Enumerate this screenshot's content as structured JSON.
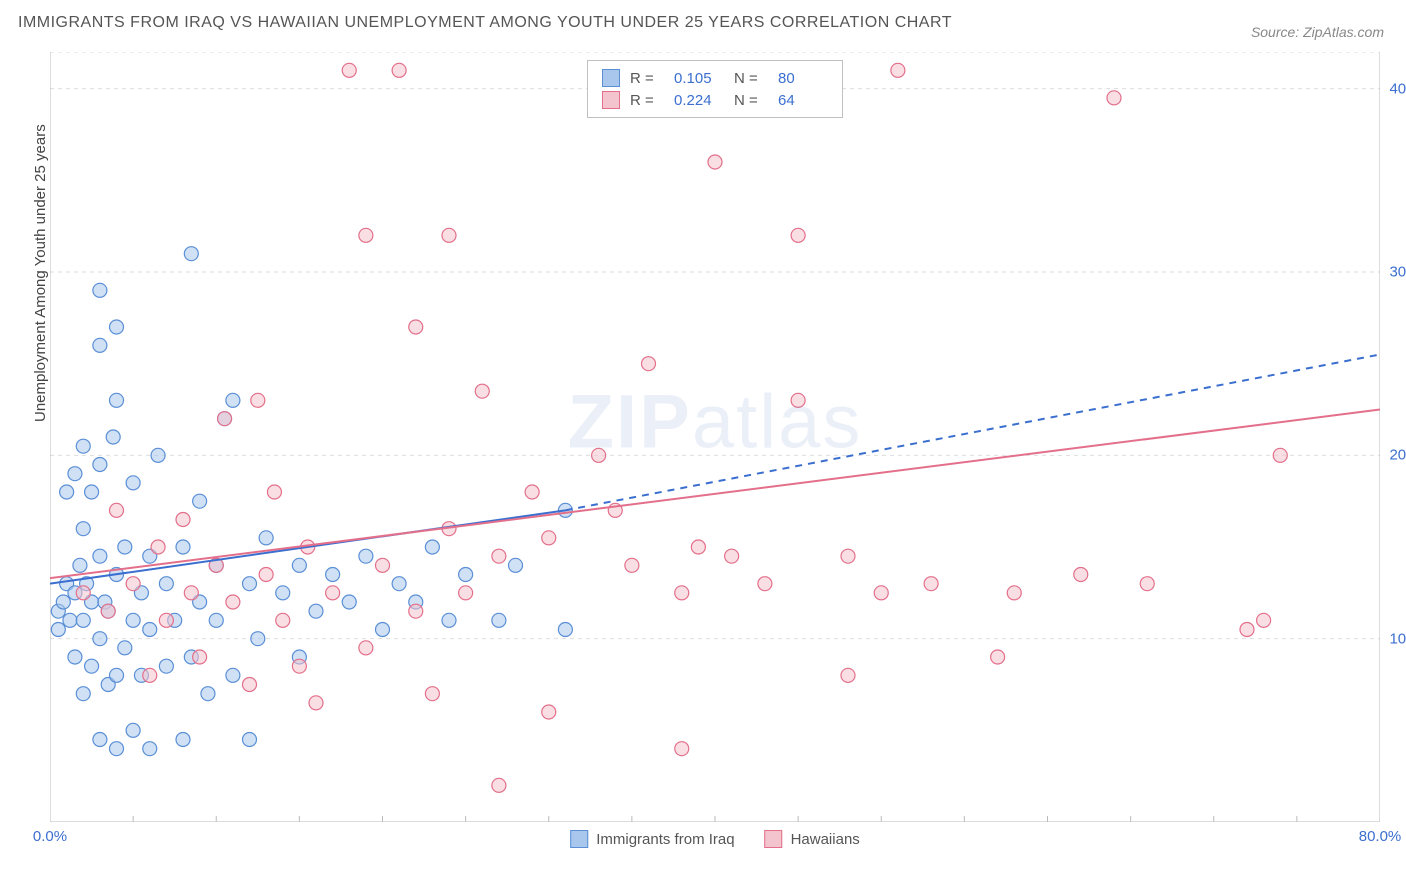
{
  "title": "IMMIGRANTS FROM IRAQ VS HAWAIIAN UNEMPLOYMENT AMONG YOUTH UNDER 25 YEARS CORRELATION CHART",
  "source": "Source: ZipAtlas.com",
  "y_label": "Unemployment Among Youth under 25 years",
  "watermark_a": "ZIP",
  "watermark_b": "atlas",
  "chart": {
    "type": "scatter",
    "background_color": "#ffffff",
    "grid_color": "#dddddd",
    "axis_color": "#bbbbbb",
    "tick_color": "#3b6fcf",
    "xlim": [
      0,
      80
    ],
    "ylim": [
      0,
      42
    ],
    "x_ticks": [
      0,
      80
    ],
    "x_tick_labels": [
      "0.0%",
      "80.0%"
    ],
    "y_ticks": [
      10,
      20,
      30,
      40
    ],
    "y_tick_labels": [
      "10.0%",
      "20.0%",
      "30.0%",
      "40.0%"
    ],
    "marker_radius": 7,
    "marker_stroke_width": 1.2,
    "series": [
      {
        "name": "Immigrants from Iraq",
        "fill": "#a9c6ed",
        "stroke": "#5a8fd6",
        "r_label": "R =",
        "r": "0.105",
        "n_label": "N =",
        "n": "80",
        "trend": {
          "x1": 0,
          "y1": 13.0,
          "x2": 31,
          "y2": 17.0,
          "solid_to_x": 31,
          "dash_to_x": 80,
          "dash_to_y": 25.5,
          "color": "#3b6fcf",
          "width": 2
        },
        "points": [
          [
            0.5,
            10.5
          ],
          [
            0.5,
            11.5
          ],
          [
            0.8,
            12.0
          ],
          [
            1.0,
            13.0
          ],
          [
            1.0,
            18.0
          ],
          [
            1.2,
            11.0
          ],
          [
            1.5,
            9.0
          ],
          [
            1.5,
            12.5
          ],
          [
            1.5,
            19.0
          ],
          [
            1.8,
            14.0
          ],
          [
            2.0,
            7.0
          ],
          [
            2.0,
            11.0
          ],
          [
            2.0,
            16.0
          ],
          [
            2.0,
            20.5
          ],
          [
            2.2,
            13.0
          ],
          [
            2.5,
            8.5
          ],
          [
            2.5,
            12.0
          ],
          [
            2.5,
            18.0
          ],
          [
            3.0,
            4.5
          ],
          [
            3.0,
            10.0
          ],
          [
            3.0,
            14.5
          ],
          [
            3.0,
            19.5
          ],
          [
            3.0,
            26.0
          ],
          [
            3.0,
            29.0
          ],
          [
            3.3,
            12.0
          ],
          [
            3.5,
            7.5
          ],
          [
            3.5,
            11.5
          ],
          [
            3.8,
            21.0
          ],
          [
            4.0,
            4.0
          ],
          [
            4.0,
            8.0
          ],
          [
            4.0,
            13.5
          ],
          [
            4.0,
            23.0
          ],
          [
            4.0,
            27.0
          ],
          [
            4.5,
            9.5
          ],
          [
            4.5,
            15.0
          ],
          [
            5.0,
            5.0
          ],
          [
            5.0,
            11.0
          ],
          [
            5.0,
            18.5
          ],
          [
            5.5,
            8.0
          ],
          [
            5.5,
            12.5
          ],
          [
            6.0,
            4.0
          ],
          [
            6.0,
            10.5
          ],
          [
            6.0,
            14.5
          ],
          [
            6.5,
            20.0
          ],
          [
            7.0,
            8.5
          ],
          [
            7.0,
            13.0
          ],
          [
            7.5,
            11.0
          ],
          [
            8.0,
            4.5
          ],
          [
            8.0,
            15.0
          ],
          [
            8.5,
            9.0
          ],
          [
            8.5,
            31.0
          ],
          [
            9.0,
            12.0
          ],
          [
            9.0,
            17.5
          ],
          [
            9.5,
            7.0
          ],
          [
            10.0,
            11.0
          ],
          [
            10.0,
            14.0
          ],
          [
            10.5,
            22.0
          ],
          [
            11.0,
            8.0
          ],
          [
            11.0,
            23.0
          ],
          [
            12.0,
            4.5
          ],
          [
            12.0,
            13.0
          ],
          [
            12.5,
            10.0
          ],
          [
            13.0,
            15.5
          ],
          [
            14.0,
            12.5
          ],
          [
            15.0,
            9.0
          ],
          [
            15.0,
            14.0
          ],
          [
            16.0,
            11.5
          ],
          [
            17.0,
            13.5
          ],
          [
            18.0,
            12.0
          ],
          [
            19.0,
            14.5
          ],
          [
            20.0,
            10.5
          ],
          [
            21.0,
            13.0
          ],
          [
            22.0,
            12.0
          ],
          [
            23.0,
            15.0
          ],
          [
            24.0,
            11.0
          ],
          [
            25.0,
            13.5
          ],
          [
            27.0,
            11.0
          ],
          [
            28.0,
            14.0
          ],
          [
            31.0,
            10.5
          ],
          [
            31.0,
            17.0
          ]
        ]
      },
      {
        "name": "Hawaiians",
        "fill": "#f4c4ce",
        "stroke": "#e36f8a",
        "r_label": "R =",
        "r": "0.224",
        "n_label": "N =",
        "n": "64",
        "trend": {
          "x1": 0,
          "y1": 13.3,
          "x2": 80,
          "y2": 22.5,
          "color": "#e36f8a",
          "width": 2
        },
        "points": [
          [
            2.0,
            12.5
          ],
          [
            3.5,
            11.5
          ],
          [
            4.0,
            17.0
          ],
          [
            5.0,
            13.0
          ],
          [
            6.0,
            8.0
          ],
          [
            6.5,
            15.0
          ],
          [
            7.0,
            11.0
          ],
          [
            8.0,
            16.5
          ],
          [
            8.5,
            12.5
          ],
          [
            9.0,
            9.0
          ],
          [
            10.0,
            14.0
          ],
          [
            10.5,
            22.0
          ],
          [
            11.0,
            12.0
          ],
          [
            12.0,
            7.5
          ],
          [
            12.5,
            23.0
          ],
          [
            13.0,
            13.5
          ],
          [
            13.5,
            18.0
          ],
          [
            14.0,
            11.0
          ],
          [
            15.0,
            8.5
          ],
          [
            15.5,
            15.0
          ],
          [
            16.0,
            6.5
          ],
          [
            17.0,
            12.5
          ],
          [
            18.0,
            41.0
          ],
          [
            19.0,
            9.5
          ],
          [
            19.0,
            32.0
          ],
          [
            20.0,
            14.0
          ],
          [
            21.0,
            41.0
          ],
          [
            22.0,
            11.5
          ],
          [
            22.0,
            27.0
          ],
          [
            23.0,
            7.0
          ],
          [
            24.0,
            16.0
          ],
          [
            24.0,
            32.0
          ],
          [
            25.0,
            12.5
          ],
          [
            26.0,
            23.5
          ],
          [
            27.0,
            14.5
          ],
          [
            27.0,
            2.0
          ],
          [
            29.0,
            18.0
          ],
          [
            30.0,
            6.0
          ],
          [
            30.0,
            15.5
          ],
          [
            33.0,
            20.0
          ],
          [
            34.0,
            17.0
          ],
          [
            35.0,
            14.0
          ],
          [
            36.0,
            25.0
          ],
          [
            38.0,
            4.0
          ],
          [
            38.0,
            12.5
          ],
          [
            39.0,
            15.0
          ],
          [
            40.0,
            36.0
          ],
          [
            41.0,
            14.5
          ],
          [
            43.0,
            13.0
          ],
          [
            45.0,
            23.0
          ],
          [
            45.0,
            32.0
          ],
          [
            48.0,
            8.0
          ],
          [
            48.0,
            14.5
          ],
          [
            50.0,
            12.5
          ],
          [
            51.0,
            41.0
          ],
          [
            53.0,
            13.0
          ],
          [
            57.0,
            9.0
          ],
          [
            58.0,
            12.5
          ],
          [
            62.0,
            13.5
          ],
          [
            64.0,
            39.5
          ],
          [
            66.0,
            13.0
          ],
          [
            72.0,
            10.5
          ],
          [
            73.0,
            11.0
          ],
          [
            74.0,
            20.0
          ]
        ]
      }
    ]
  }
}
